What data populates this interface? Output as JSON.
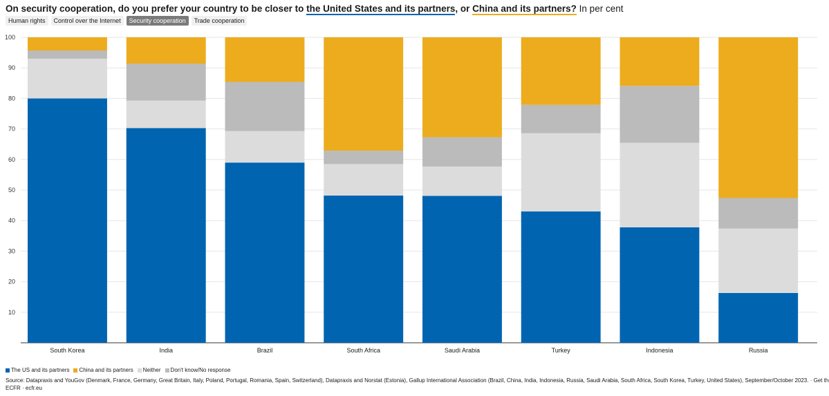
{
  "title": {
    "prefix": "On security cooperation, do you prefer your country to be closer to ",
    "us": "the United States and its partners",
    "middle": ", or ",
    "china": "China and its partners?",
    "unit": " In per cent"
  },
  "tabs": [
    {
      "label": "Human rights",
      "active": false
    },
    {
      "label": "Control over the Internet",
      "active": false
    },
    {
      "label": "Security cooperation",
      "active": true
    },
    {
      "label": "Trade cooperation",
      "active": false
    }
  ],
  "colors": {
    "us": "#0064b1",
    "china": "#ecac1e",
    "neither": "#dcdcdc",
    "dk": "#bbbbbb"
  },
  "chart_data": {
    "type": "bar",
    "stacked": true,
    "categories": [
      "South Korea",
      "India",
      "Brazil",
      "South Africa",
      "Saudi Arabia",
      "Turkey",
      "Indonesia",
      "Russia"
    ],
    "series": [
      {
        "name": "The US and its partners",
        "key": "us",
        "values": [
          80,
          70.3,
          59,
          48.2,
          48.1,
          43,
          37.8,
          16.3
        ]
      },
      {
        "name": "Neither",
        "key": "neither",
        "values": [
          13,
          9,
          10.3,
          10.3,
          9.6,
          25.6,
          27.7,
          21.1
        ]
      },
      {
        "name": "Don't know/No response",
        "key": "dk",
        "values": [
          2.7,
          12.1,
          16.1,
          4.4,
          9.6,
          9.3,
          18.6,
          10
        ]
      },
      {
        "name": "China and its partners",
        "key": "china",
        "values": [
          4.3,
          8.6,
          14.6,
          37.1,
          32.7,
          22.1,
          15.9,
          52.6
        ]
      }
    ],
    "ylim": [
      0,
      100
    ],
    "yticks": [
      10,
      20,
      30,
      40,
      50,
      60,
      70,
      80,
      90,
      100
    ],
    "grid": true,
    "legend_position": "bottom-left"
  },
  "legend": [
    {
      "label": "The US and its partners",
      "key": "us"
    },
    {
      "label": "China and its partners",
      "key": "china"
    },
    {
      "label": "Neither",
      "key": "neither"
    },
    {
      "label": "Don't know/No response",
      "key": "dk"
    }
  ],
  "source": {
    "line1": "Source: Datapraxis and YouGov (Denmark, France, Germany, Great Britain, Italy, Poland, Portugal, Romania, Spain, Switzerland), Datapraxis and Norstat (Estonia), Gallup International Association (Brazil, China, India, Indonesia, Russia, Saudi Arabia, South Africa, South Korea, Turkey, United States), September/October 2023. · Get the data",
    "line2": "ECFR · ecfr.eu"
  }
}
